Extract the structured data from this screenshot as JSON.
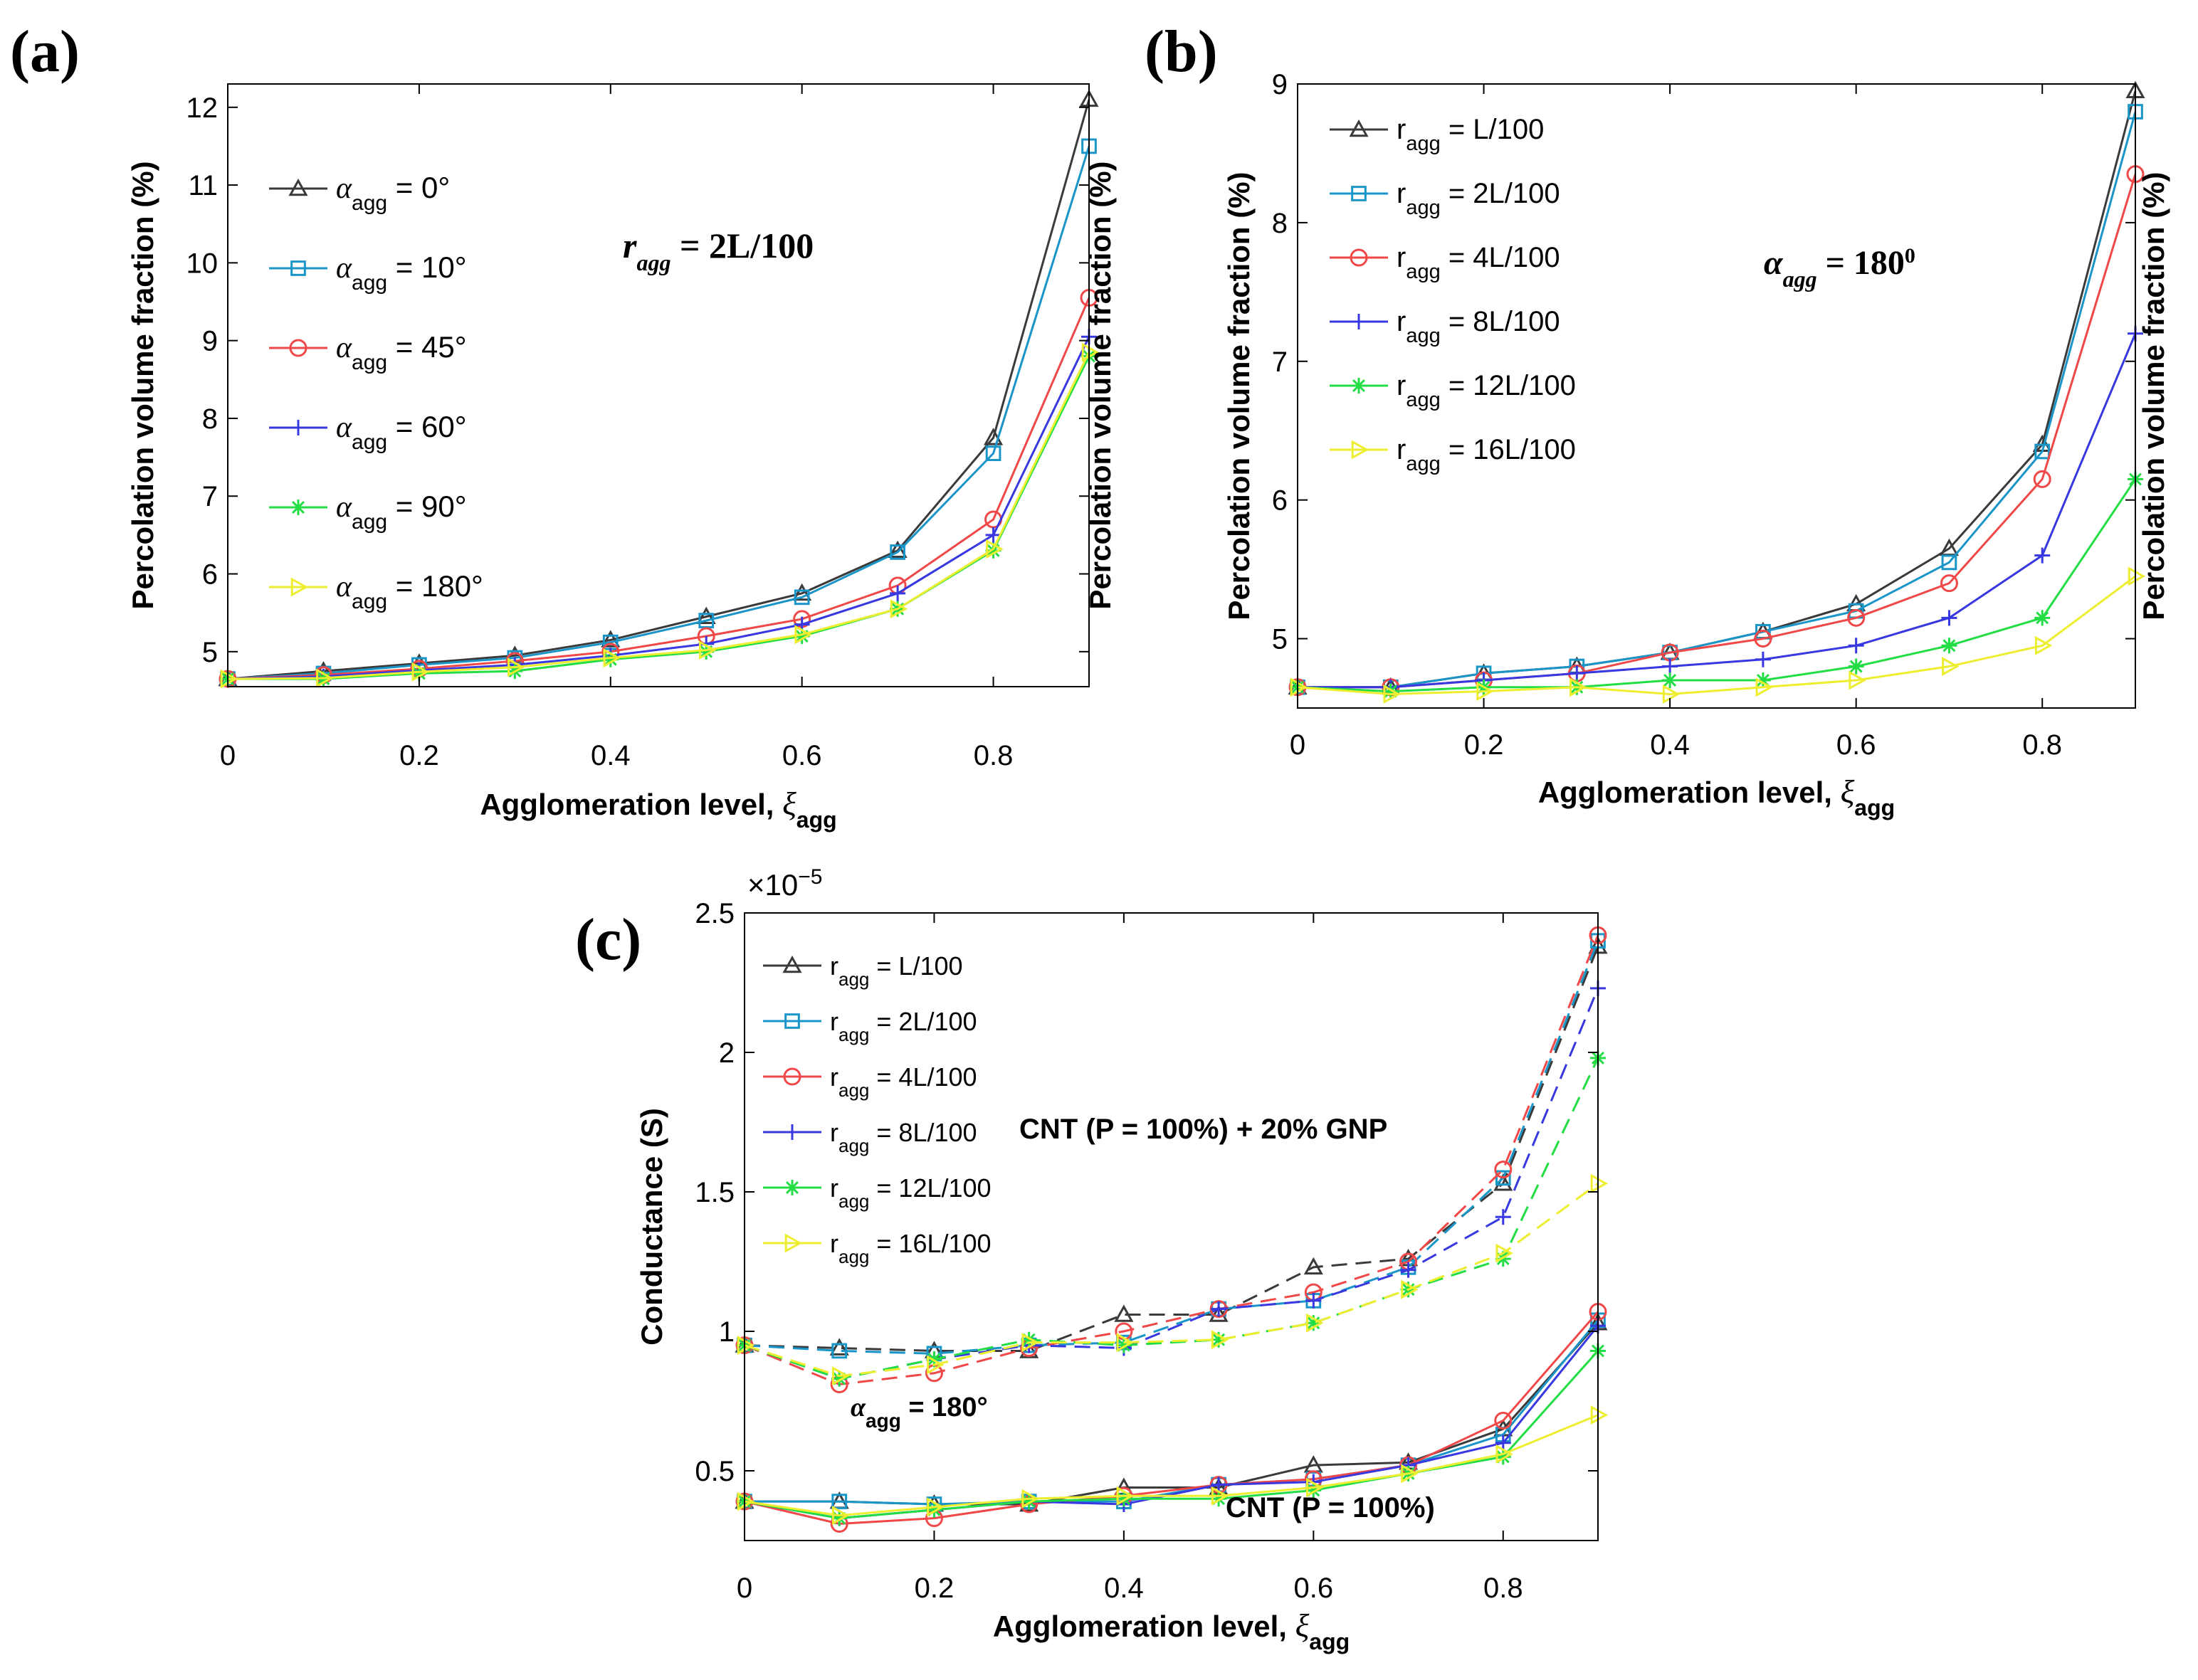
{
  "figure": {
    "panels": [
      "(a)",
      "(b)",
      "(c)"
    ]
  },
  "chart_data": [
    {
      "id": "a",
      "type": "line",
      "panel_label": "(a)",
      "xlabel": "Agglomeration level, ξagg",
      "xlabel_main": "Agglomeration level, ",
      "xlabel_sym": "ξ",
      "xlabel_sub": "agg",
      "ylabel": "Percolation volume fraction (%)",
      "ylabel_right": "Percolation volume fraction (%)",
      "xlim": [
        0,
        0.9
      ],
      "ylim": [
        4.55,
        12.3
      ],
      "xticks": [
        0,
        0.2,
        0.4,
        0.6,
        0.8
      ],
      "xtick_labels": [
        "0",
        "0.2",
        "0.4",
        "0.6",
        "0.8"
      ],
      "yticks": [
        5,
        6,
        7,
        8,
        9,
        10,
        11,
        12
      ],
      "ytick_labels": [
        "5",
        "6",
        "7",
        "8",
        "9",
        "10",
        "11",
        "12"
      ],
      "x": [
        0,
        0.1,
        0.2,
        0.3,
        0.4,
        0.5,
        0.6,
        0.7,
        0.8,
        0.9
      ],
      "annotation": "r_agg = 2L/100",
      "annotation_main": "r",
      "annotation_sub": "agg",
      "annotation_rest": " = 2L/100",
      "legend": {
        "symbol": "α",
        "sub": "agg"
      },
      "series": [
        {
          "name": "αagg = 0°",
          "label_rest": " = 0°",
          "color": "#3a3a3a",
          "marker": "triangle",
          "dash": "solid",
          "values": [
            4.65,
            4.75,
            4.85,
            4.95,
            5.15,
            5.45,
            5.75,
            6.3,
            7.75,
            12.1
          ]
        },
        {
          "name": "αagg = 10°",
          "label_rest": " = 10°",
          "color": "#1a95c8",
          "marker": "square",
          "dash": "solid",
          "values": [
            4.65,
            4.72,
            4.83,
            4.92,
            5.12,
            5.4,
            5.7,
            6.28,
            7.55,
            11.5
          ]
        },
        {
          "name": "αagg = 45°",
          "label_rest": " = 45°",
          "color": "#f04848",
          "marker": "circle",
          "dash": "solid",
          "values": [
            4.65,
            4.7,
            4.78,
            4.88,
            5.0,
            5.2,
            5.42,
            5.85,
            6.7,
            9.55
          ]
        },
        {
          "name": "αagg = 60°",
          "label_rest": " = 60°",
          "color": "#3838e0",
          "marker": "plus",
          "dash": "solid",
          "values": [
            4.65,
            4.68,
            4.76,
            4.83,
            4.95,
            5.1,
            5.35,
            5.75,
            6.5,
            9.05
          ]
        },
        {
          "name": "αagg = 90°",
          "label_rest": " = 90°",
          "color": "#22dd44",
          "marker": "asterisk",
          "dash": "solid",
          "values": [
            4.65,
            4.65,
            4.72,
            4.75,
            4.9,
            5.0,
            5.2,
            5.55,
            6.3,
            8.8
          ]
        },
        {
          "name": "αagg = 180°",
          "label_rest": " = 180°",
          "color": "#eeee30",
          "marker": "triright",
          "dash": "solid",
          "values": [
            4.65,
            4.66,
            4.74,
            4.8,
            4.92,
            5.02,
            5.22,
            5.55,
            6.32,
            8.85
          ]
        }
      ]
    },
    {
      "id": "b",
      "type": "line",
      "panel_label": "(b)",
      "xlabel": "Agglomeration level, ξagg",
      "xlabel_main": "Agglomeration level, ",
      "xlabel_sym": "ξ",
      "xlabel_sub": "agg",
      "ylabel": "Percolation volume fraction (%)",
      "ylabel_right": "Percolation volume fraction (%)",
      "xlim": [
        0,
        0.9
      ],
      "ylim": [
        4.5,
        9
      ],
      "xticks": [
        0,
        0.2,
        0.4,
        0.6,
        0.8
      ],
      "xtick_labels": [
        "0",
        "0.2",
        "0.4",
        "0.6",
        "0.8"
      ],
      "yticks": [
        5,
        6,
        7,
        8,
        9
      ],
      "ytick_labels": [
        "5",
        "6",
        "7",
        "8",
        "9"
      ],
      "x": [
        0,
        0.1,
        0.2,
        0.3,
        0.4,
        0.5,
        0.6,
        0.7,
        0.8,
        0.9
      ],
      "annotation": "α_agg = 180^0",
      "annotation_main": "α",
      "annotation_sub": "agg",
      "annotation_rest": " = 180",
      "annotation_sup": "0",
      "legend": {
        "symbol": "r",
        "sub": "agg"
      },
      "series": [
        {
          "name": "ragg = L/100",
          "label_rest": " = L/100",
          "color": "#3a3a3a",
          "marker": "triangle",
          "dash": "solid",
          "values": [
            4.65,
            4.65,
            4.75,
            4.8,
            4.9,
            5.05,
            5.25,
            5.65,
            6.4,
            8.95
          ]
        },
        {
          "name": "ragg = 2L/100",
          "label_rest": " = 2L/100",
          "color": "#1a95c8",
          "marker": "square",
          "dash": "solid",
          "values": [
            4.65,
            4.65,
            4.75,
            4.8,
            4.9,
            5.05,
            5.2,
            5.55,
            6.35,
            8.8
          ]
        },
        {
          "name": "ragg = 4L/100",
          "label_rest": " = 4L/100",
          "color": "#f04848",
          "marker": "circle",
          "dash": "solid",
          "values": [
            4.65,
            4.65,
            4.7,
            4.75,
            4.9,
            5.0,
            5.15,
            5.4,
            6.15,
            8.35
          ]
        },
        {
          "name": "ragg = 8L/100",
          "label_rest": " = 8L/100",
          "color": "#3838e0",
          "marker": "plus",
          "dash": "solid",
          "values": [
            4.65,
            4.65,
            4.7,
            4.75,
            4.8,
            4.85,
            4.95,
            5.15,
            5.6,
            7.2
          ]
        },
        {
          "name": "ragg = 12L/100",
          "label_rest": " = 12L/100",
          "color": "#22dd44",
          "marker": "asterisk",
          "dash": "solid",
          "values": [
            4.65,
            4.62,
            4.65,
            4.65,
            4.7,
            4.7,
            4.8,
            4.95,
            5.15,
            6.15
          ]
        },
        {
          "name": "ragg = 16L/100",
          "label_rest": " = 16L/100",
          "color": "#eeee30",
          "marker": "triright",
          "dash": "solid",
          "values": [
            4.65,
            4.6,
            4.62,
            4.65,
            4.6,
            4.65,
            4.7,
            4.8,
            4.95,
            5.45
          ]
        }
      ]
    },
    {
      "id": "c",
      "type": "line",
      "panel_label": "(c)",
      "xlabel": "Agglomeration level, ξagg",
      "xlabel_main": "Agglomeration level, ",
      "xlabel_sym": "ξ",
      "xlabel_sub": "agg",
      "ylabel": "Conductance (S)",
      "multiplier": "×10",
      "multiplier_exp": "−5",
      "xlim": [
        0,
        0.9
      ],
      "ylim": [
        0.25,
        2.5
      ],
      "xticks": [
        0,
        0.2,
        0.4,
        0.6,
        0.8
      ],
      "xtick_labels": [
        "0",
        "0.2",
        "0.4",
        "0.6",
        "0.8"
      ],
      "yticks": [
        0.5,
        1,
        1.5,
        2,
        2.5
      ],
      "ytick_labels": [
        "0.5",
        "1",
        "1.5",
        "2",
        "2.5"
      ],
      "x": [
        0,
        0.1,
        0.2,
        0.3,
        0.4,
        0.5,
        0.6,
        0.7,
        0.8,
        0.9
      ],
      "annotations": {
        "gnp": "CNT (P = 100%) + 20% GNP",
        "cnt": "CNT (P = 100%)",
        "alpha_main": "α",
        "alpha_sub": "agg",
        "alpha_rest": " = 180°"
      },
      "legend": {
        "symbol": "r",
        "sub": "agg"
      },
      "series": [
        {
          "name": "ragg = L/100",
          "label_rest": " = L/100",
          "color": "#3a3a3a",
          "marker": "triangle",
          "group": "CNT + 20% GNP",
          "dash": "dashed",
          "values": [
            0.95,
            0.94,
            0.93,
            0.93,
            1.06,
            1.06,
            1.23,
            1.26,
            1.53,
            2.38
          ]
        },
        {
          "name": "ragg = 2L/100",
          "label_rest": " = 2L/100",
          "color": "#1a95c8",
          "marker": "square",
          "group": "CNT + 20% GNP",
          "dash": "dashed",
          "values": [
            0.95,
            0.93,
            0.92,
            0.95,
            0.96,
            1.08,
            1.11,
            1.23,
            1.55,
            2.4
          ]
        },
        {
          "name": "ragg = 4L/100",
          "label_rest": " = 4L/100",
          "color": "#f04848",
          "marker": "circle",
          "group": "CNT + 20% GNP",
          "dash": "dashed",
          "values": [
            0.95,
            0.81,
            0.85,
            0.94,
            1.0,
            1.08,
            1.14,
            1.25,
            1.58,
            2.42
          ]
        },
        {
          "name": "ragg = 8L/100",
          "label_rest": " = 8L/100",
          "color": "#3838e0",
          "marker": "plus",
          "group": "CNT + 20% GNP",
          "dash": "dashed",
          "values": [
            0.95,
            0.83,
            0.9,
            0.95,
            0.94,
            1.08,
            1.11,
            1.22,
            1.41,
            2.23
          ]
        },
        {
          "name": "ragg = 12L/100",
          "label_rest": " = 12L/100",
          "color": "#22dd44",
          "marker": "asterisk",
          "group": "CNT + 20% GNP",
          "dash": "dashed",
          "values": [
            0.95,
            0.83,
            0.9,
            0.97,
            0.95,
            0.97,
            1.03,
            1.15,
            1.26,
            1.98
          ]
        },
        {
          "name": "ragg = 16L/100",
          "label_rest": " = 16L/100",
          "color": "#eeee30",
          "marker": "triright",
          "group": "CNT + 20% GNP",
          "dash": "dashed",
          "values": [
            0.95,
            0.84,
            0.88,
            0.96,
            0.96,
            0.97,
            1.03,
            1.15,
            1.28,
            1.53
          ]
        },
        {
          "name": "ragg = L/100 (CNT)",
          "color": "#3a3a3a",
          "marker": "triangle",
          "group": "CNT",
          "dash": "solid",
          "values": [
            0.39,
            0.39,
            0.38,
            0.38,
            0.44,
            0.44,
            0.52,
            0.53,
            0.65,
            1.03
          ]
        },
        {
          "name": "ragg = 2L/100 (CNT)",
          "color": "#1a95c8",
          "marker": "square",
          "group": "CNT",
          "dash": "solid",
          "values": [
            0.39,
            0.39,
            0.38,
            0.39,
            0.39,
            0.45,
            0.47,
            0.52,
            0.63,
            1.04
          ]
        },
        {
          "name": "ragg = 4L/100 (CNT)",
          "color": "#f04848",
          "marker": "circle",
          "group": "CNT",
          "dash": "solid",
          "values": [
            0.39,
            0.31,
            0.33,
            0.38,
            0.41,
            0.45,
            0.47,
            0.52,
            0.68,
            1.07
          ]
        },
        {
          "name": "ragg = 8L/100 (CNT)",
          "color": "#3838e0",
          "marker": "plus",
          "group": "CNT",
          "dash": "solid",
          "values": [
            0.39,
            0.33,
            0.36,
            0.39,
            0.38,
            0.45,
            0.46,
            0.52,
            0.6,
            1.02
          ]
        },
        {
          "name": "ragg = 12L/100 (CNT)",
          "color": "#22dd44",
          "marker": "asterisk",
          "group": "CNT",
          "dash": "solid",
          "values": [
            0.39,
            0.33,
            0.36,
            0.39,
            0.4,
            0.4,
            0.43,
            0.49,
            0.55,
            0.93
          ]
        },
        {
          "name": "ragg = 16L/100 (CNT)",
          "color": "#eeee30",
          "marker": "triright",
          "group": "CNT",
          "dash": "solid",
          "values": [
            0.39,
            0.34,
            0.37,
            0.4,
            0.41,
            0.41,
            0.44,
            0.49,
            0.56,
            0.7
          ]
        }
      ]
    }
  ]
}
